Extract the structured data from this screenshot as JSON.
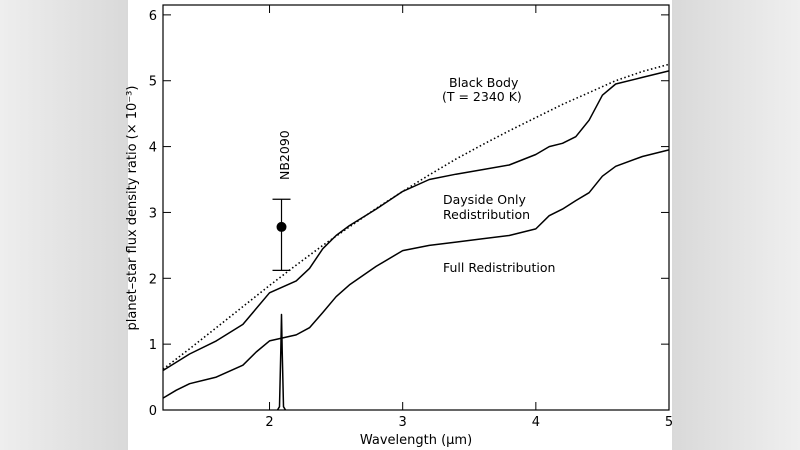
{
  "chart_data": {
    "type": "line",
    "xlabel": "Wavelength (μm)",
    "ylabel": "planet–star flux density ratio (× 10⁻³)",
    "xlim": [
      1.2,
      5.0
    ],
    "ylim": [
      0,
      6.15
    ],
    "xticks": [
      2,
      3,
      4,
      5
    ],
    "yticks": [
      0,
      1,
      2,
      3,
      4,
      5,
      6
    ],
    "grid": false,
    "series": [
      {
        "name": "Black Body (T = 2340 K)",
        "style": "dotted",
        "x": [
          1.2,
          1.4,
          1.6,
          1.8,
          2.0,
          2.2,
          2.4,
          2.6,
          2.8,
          3.0,
          3.2,
          3.4,
          3.6,
          3.8,
          4.0,
          4.2,
          4.4,
          4.6,
          4.8,
          5.0
        ],
        "y": [
          0.62,
          0.93,
          1.25,
          1.57,
          1.89,
          2.2,
          2.5,
          2.78,
          3.06,
          3.32,
          3.57,
          3.81,
          4.03,
          4.24,
          4.44,
          4.64,
          4.82,
          5.0,
          5.14,
          5.25
        ]
      },
      {
        "name": "Dayside Only Redistribution",
        "style": "solid",
        "x": [
          1.2,
          1.4,
          1.6,
          1.8,
          2.0,
          2.2,
          2.3,
          2.4,
          2.5,
          2.6,
          2.8,
          3.0,
          3.2,
          3.4,
          3.6,
          3.8,
          4.0,
          4.1,
          4.2,
          4.3,
          4.4,
          4.5,
          4.6,
          4.8,
          5.0
        ],
        "y": [
          0.6,
          0.85,
          1.05,
          1.3,
          1.78,
          1.96,
          2.15,
          2.45,
          2.65,
          2.8,
          3.05,
          3.32,
          3.5,
          3.58,
          3.65,
          3.72,
          3.88,
          4.0,
          4.05,
          4.15,
          4.4,
          4.78,
          4.95,
          5.05,
          5.15
        ]
      },
      {
        "name": "Full Redistribution",
        "style": "solid",
        "x": [
          1.2,
          1.3,
          1.4,
          1.6,
          1.8,
          1.9,
          2.0,
          2.2,
          2.3,
          2.4,
          2.5,
          2.6,
          2.8,
          3.0,
          3.2,
          3.4,
          3.6,
          3.8,
          4.0,
          4.1,
          4.2,
          4.3,
          4.4,
          4.5,
          4.6,
          4.8,
          5.0
        ],
        "y": [
          0.18,
          0.3,
          0.4,
          0.5,
          0.68,
          0.88,
          1.05,
          1.14,
          1.25,
          1.48,
          1.72,
          1.9,
          2.18,
          2.42,
          2.5,
          2.55,
          2.6,
          2.65,
          2.75,
          2.95,
          3.05,
          3.18,
          3.3,
          3.55,
          3.7,
          3.85,
          3.95
        ]
      },
      {
        "name": "NB2090 filter",
        "style": "solid",
        "x": [
          2.06,
          2.075,
          2.085,
          2.09,
          2.095,
          2.105,
          2.12
        ],
        "y": [
          0,
          0.05,
          0.9,
          1.45,
          0.9,
          0.05,
          0
        ]
      }
    ],
    "point": {
      "name": "NB2090",
      "x": 2.09,
      "y": 2.78,
      "yerr_low": 2.12,
      "yerr_high": 3.2
    },
    "annotations": {
      "blackbody_line1": "Black Body",
      "blackbody_line2": "(T = 2340 K)",
      "dayside_line1": "Dayside Only",
      "dayside_line2": "Redistribution",
      "full": "Full Redistribution",
      "filter": "NB2090"
    }
  }
}
